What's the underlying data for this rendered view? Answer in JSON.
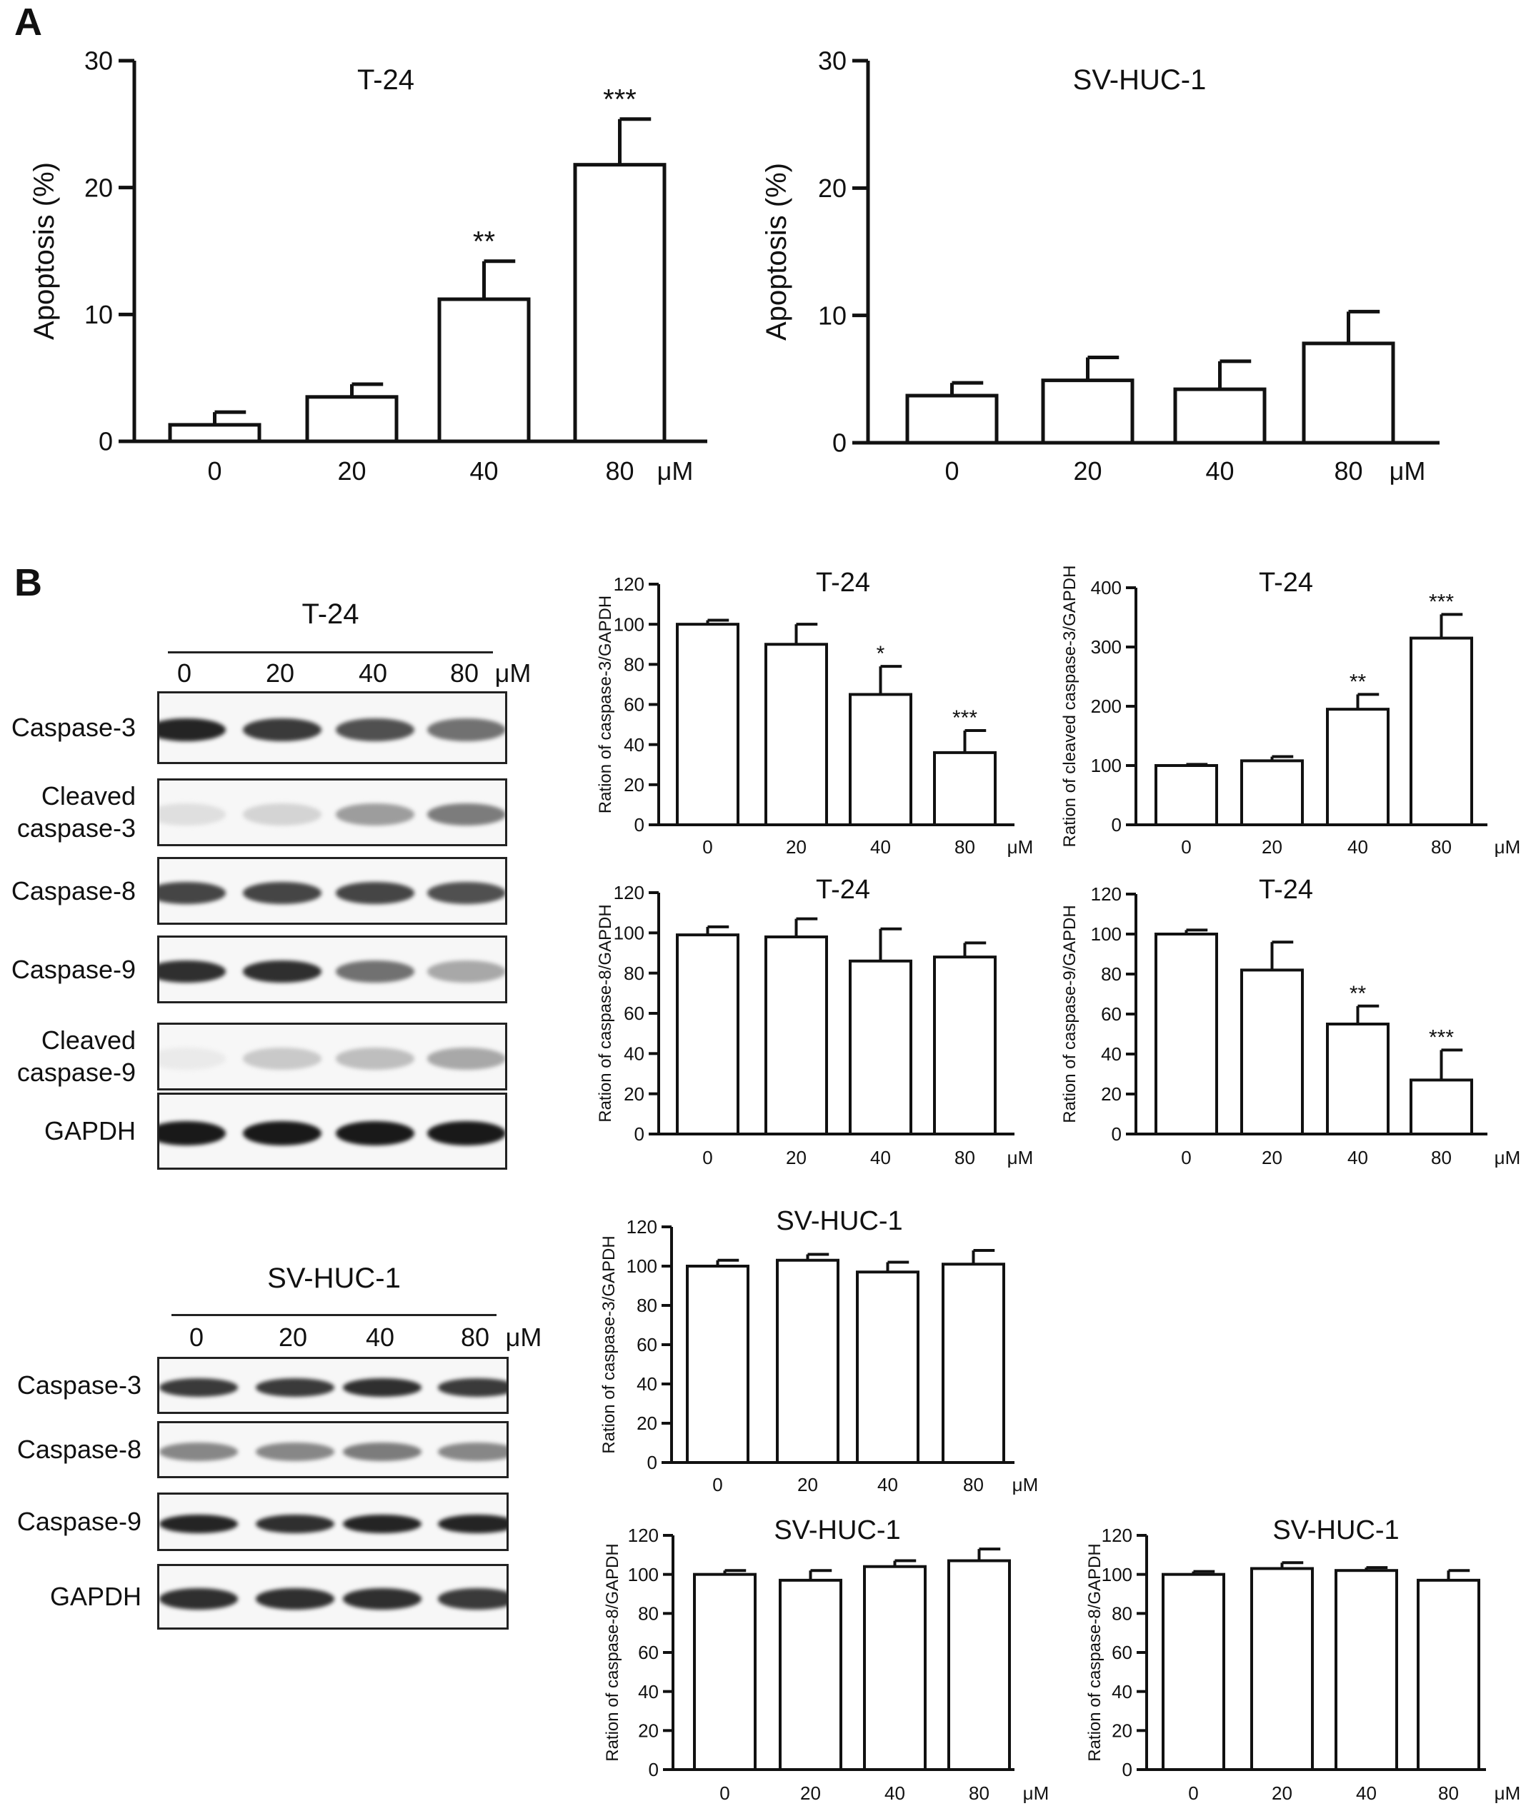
{
  "panels": {
    "A": "A",
    "B": "B"
  },
  "blots": [
    {
      "title": "T-24",
      "concentrations": [
        "0",
        "20",
        "40",
        "80"
      ],
      "unit": "μM",
      "rows": [
        {
          "label": "Caspase-3",
          "intensity": [
            0.95,
            0.85,
            0.75,
            0.6
          ]
        },
        {
          "label": "Cleaved\ncaspase-3",
          "intensity": [
            0.1,
            0.15,
            0.4,
            0.55
          ]
        },
        {
          "label": "Caspase-8",
          "intensity": [
            0.8,
            0.8,
            0.8,
            0.75
          ]
        },
        {
          "label": "Caspase-9",
          "intensity": [
            0.9,
            0.9,
            0.6,
            0.35
          ]
        },
        {
          "label": "Cleaved\ncaspase-9",
          "intensity": [
            0.05,
            0.2,
            0.25,
            0.35
          ]
        },
        {
          "label": "GAPDH",
          "intensity": [
            1.0,
            1.0,
            1.0,
            1.0
          ]
        }
      ]
    },
    {
      "title": "SV-HUC-1",
      "concentrations": [
        "0",
        "20",
        "40",
        "80"
      ],
      "unit": "μM",
      "rows": [
        {
          "label": "Caspase-3",
          "intensity": [
            0.85,
            0.85,
            0.9,
            0.85
          ]
        },
        {
          "label": "Caspase-8",
          "intensity": [
            0.5,
            0.5,
            0.55,
            0.5
          ]
        },
        {
          "label": "Caspase-9",
          "intensity": [
            0.95,
            0.9,
            0.95,
            0.95
          ]
        },
        {
          "label": "GAPDH",
          "intensity": [
            0.9,
            0.9,
            0.9,
            0.85
          ]
        }
      ]
    }
  ],
  "chart_data": [
    {
      "type": "bar",
      "title": "T-24",
      "ylabel": "Apoptosis (%)",
      "categories": [
        "0",
        "20",
        "40",
        "80"
      ],
      "unit": "μM",
      "values": [
        1.3,
        3.5,
        11.2,
        21.8
      ],
      "errors": [
        1.0,
        1.0,
        3.0,
        3.6
      ],
      "sig": [
        "",
        "",
        "**",
        "***"
      ],
      "ylim": [
        0,
        30
      ],
      "yticks": [
        0,
        10,
        20,
        30
      ]
    },
    {
      "type": "bar",
      "title": "SV-HUC-1",
      "ylabel": "Apoptosis (%)",
      "categories": [
        "0",
        "20",
        "40",
        "80"
      ],
      "unit": "μM",
      "values": [
        3.7,
        4.9,
        4.2,
        7.8
      ],
      "errors": [
        1.0,
        1.8,
        2.2,
        2.5
      ],
      "sig": [
        "",
        "",
        "",
        ""
      ],
      "ylim": [
        0,
        30
      ],
      "yticks": [
        0,
        10,
        20,
        30
      ]
    },
    {
      "type": "bar",
      "title": "T-24",
      "ylabel": "Ration of caspase-3/GAPDH",
      "categories": [
        "0",
        "20",
        "40",
        "80"
      ],
      "unit": "μM",
      "values": [
        100,
        90,
        65,
        36
      ],
      "errors": [
        2,
        10,
        14,
        11
      ],
      "sig": [
        "",
        "",
        "*",
        "***"
      ],
      "ylim": [
        0,
        120
      ],
      "yticks": [
        0,
        20,
        40,
        60,
        80,
        100,
        120
      ]
    },
    {
      "type": "bar",
      "title": "T-24",
      "ylabel": "Ration of cleaved caspase-3/GAPDH",
      "categories": [
        "0",
        "20",
        "40",
        "80"
      ],
      "unit": "μM",
      "values": [
        100,
        108,
        195,
        315
      ],
      "errors": [
        2,
        7,
        25,
        40
      ],
      "sig": [
        "",
        "",
        "**",
        "***"
      ],
      "ylim": [
        0,
        400
      ],
      "yticks": [
        0,
        100,
        200,
        300,
        400
      ]
    },
    {
      "type": "bar",
      "title": "T-24",
      "ylabel": "Ration of caspase-8/GAPDH",
      "categories": [
        "0",
        "20",
        "40",
        "80"
      ],
      "unit": "μM",
      "values": [
        99,
        98,
        86,
        88
      ],
      "errors": [
        4,
        9,
        16,
        7
      ],
      "sig": [
        "",
        "",
        "",
        ""
      ],
      "ylim": [
        0,
        120
      ],
      "yticks": [
        0,
        20,
        40,
        60,
        80,
        100,
        120
      ]
    },
    {
      "type": "bar",
      "title": "T-24",
      "ylabel": "Ration of caspase-9/GAPDH",
      "categories": [
        "0",
        "20",
        "40",
        "80"
      ],
      "unit": "μM",
      "values": [
        100,
        82,
        55,
        27
      ],
      "errors": [
        2,
        14,
        9,
        15
      ],
      "sig": [
        "",
        "",
        "**",
        "***"
      ],
      "ylim": [
        0,
        120
      ],
      "yticks": [
        0,
        20,
        40,
        60,
        80,
        100,
        120
      ]
    },
    {
      "type": "bar",
      "title": "SV-HUC-1",
      "ylabel": "Ration of caspase-3/GAPDH",
      "categories": [
        "0",
        "20",
        "40",
        "80"
      ],
      "unit": "μM",
      "values": [
        100,
        103,
        97,
        101
      ],
      "errors": [
        3,
        3,
        5,
        7
      ],
      "sig": [
        "",
        "",
        "",
        ""
      ],
      "ylim": [
        0,
        120
      ],
      "yticks": [
        0,
        20,
        40,
        60,
        80,
        100,
        120
      ]
    },
    {
      "type": "bar",
      "title": "SV-HUC-1",
      "ylabel": "Ration of caspase-8/GAPDH",
      "categories": [
        "0",
        "20",
        "40",
        "80"
      ],
      "unit": "μM",
      "values": [
        100,
        97,
        104,
        107
      ],
      "errors": [
        2,
        5,
        3,
        6
      ],
      "sig": [
        "",
        "",
        "",
        ""
      ],
      "ylim": [
        0,
        120
      ],
      "yticks": [
        0,
        20,
        40,
        60,
        80,
        100,
        120
      ]
    },
    {
      "type": "bar",
      "title": "SV-HUC-1",
      "ylabel": "Ration of caspase-8/GAPDH",
      "categories": [
        "0",
        "20",
        "40",
        "80"
      ],
      "unit": "μM",
      "values": [
        100,
        103,
        102,
        97
      ],
      "errors": [
        1.5,
        3,
        1.5,
        5
      ],
      "sig": [
        "",
        "",
        "",
        ""
      ],
      "ylim": [
        0,
        120
      ],
      "yticks": [
        0,
        20,
        40,
        60,
        80,
        100,
        120
      ]
    }
  ]
}
